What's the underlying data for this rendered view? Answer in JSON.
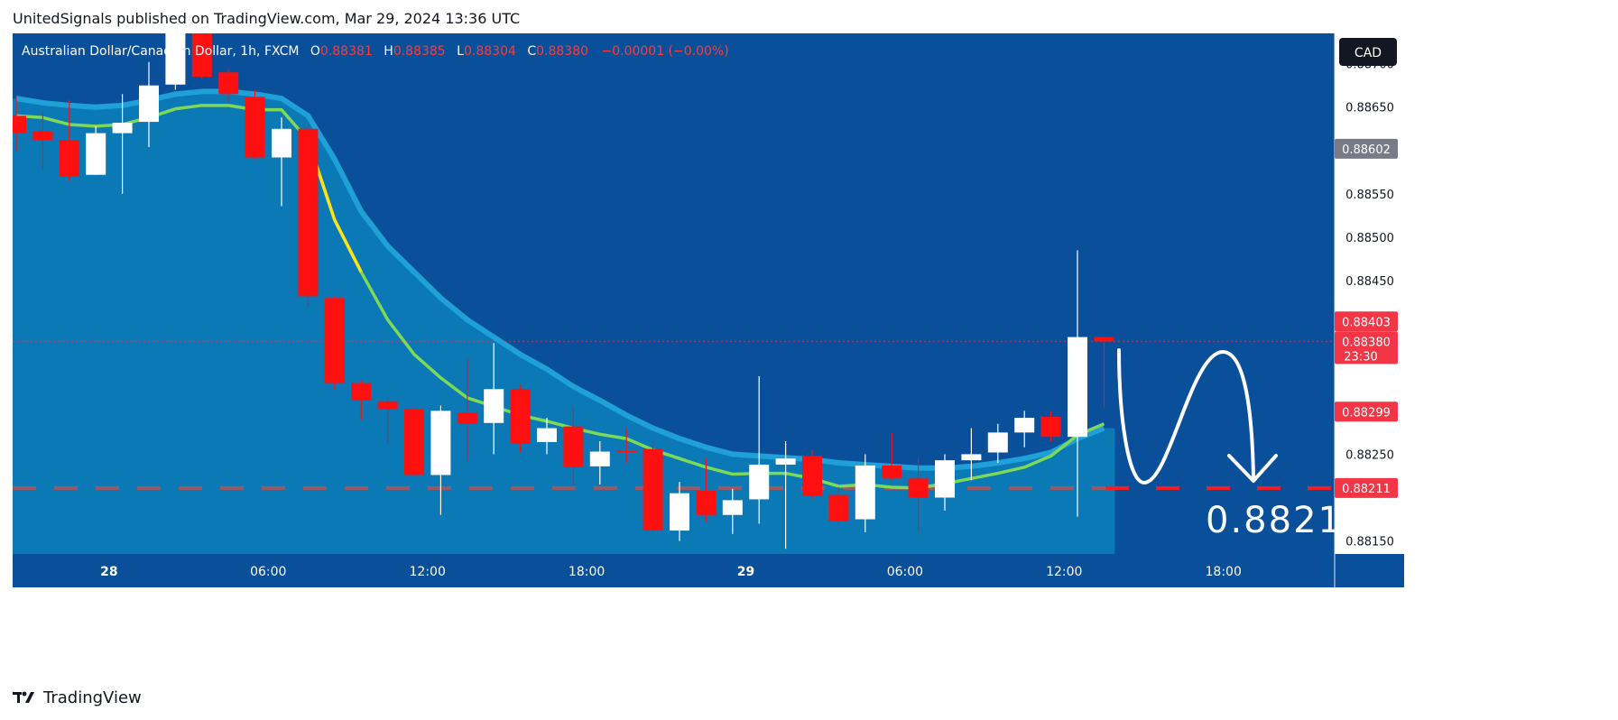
{
  "header": {
    "publisher": "UnitedSignals published on TradingView.com, Mar 29, 2024 13:36 UTC"
  },
  "legend": {
    "symbol": "Australian Dollar/Canadian Dollar, 1h, FXCM",
    "o_label": "O",
    "o_value": "0.88381",
    "h_label": "H",
    "h_value": "0.88385",
    "l_label": "L",
    "l_value": "0.88304",
    "c_label": "C",
    "c_value": "0.88380",
    "change": "−0.00001 (−0.00%)"
  },
  "currency_badge": "CAD",
  "footer": {
    "brand": "TradingView",
    "logo_icon": "tradingview-logo-icon"
  },
  "annotation": {
    "target_text": "0.8821",
    "arrow": "white-curved-arrow-down"
  },
  "colors": {
    "plot_bg": "#0a4f9a",
    "zone": "#0a7db8",
    "up": "#ffffff",
    "down": "#ff1010",
    "ema_fast": "#7ed957",
    "ema_slow": "#1fa0d8",
    "ema_yellow": "#ffe11a",
    "target_line": "#ff1a1a"
  },
  "chart_data": {
    "type": "candlestick",
    "y_range": [
      0.88135,
      0.88735
    ],
    "y_ticks": [
      "0.88700",
      "0.88650",
      "0.88550",
      "0.88500",
      "0.88450",
      "0.88250",
      "0.88150"
    ],
    "x_tick_labels": [
      "28",
      "06:00",
      "12:00",
      "18:00",
      "29",
      "06:00",
      "12:00",
      "18:00"
    ],
    "x_tick_positions": [
      3.5,
      9.5,
      15.5,
      21.5,
      27.5,
      33.5,
      39.5,
      45.5
    ],
    "candles": [
      {
        "o": 0.8864,
        "h": 0.88662,
        "l": 0.886,
        "c": 0.8862
      },
      {
        "o": 0.88622,
        "h": 0.88645,
        "l": 0.88578,
        "c": 0.88612
      },
      {
        "o": 0.88612,
        "h": 0.88658,
        "l": 0.88565,
        "c": 0.8857
      },
      {
        "o": 0.88572,
        "h": 0.88628,
        "l": 0.88572,
        "c": 0.8862
      },
      {
        "o": 0.8862,
        "h": 0.88665,
        "l": 0.8855,
        "c": 0.88632
      },
      {
        "o": 0.88633,
        "h": 0.88702,
        "l": 0.88604,
        "c": 0.88675
      },
      {
        "o": 0.88676,
        "h": 0.8876,
        "l": 0.8867,
        "c": 0.8875
      },
      {
        "o": 0.8875,
        "h": 0.8876,
        "l": 0.88683,
        "c": 0.88685
      },
      {
        "o": 0.8869,
        "h": 0.88695,
        "l": 0.88655,
        "c": 0.88665
      },
      {
        "o": 0.88662,
        "h": 0.8867,
        "l": 0.8859,
        "c": 0.88592
      },
      {
        "o": 0.88592,
        "h": 0.88638,
        "l": 0.88536,
        "c": 0.88625
      },
      {
        "o": 0.88625,
        "h": 0.8863,
        "l": 0.8842,
        "c": 0.88432
      },
      {
        "o": 0.8843,
        "h": 0.88432,
        "l": 0.88325,
        "c": 0.88332
      },
      {
        "o": 0.88332,
        "h": 0.88335,
        "l": 0.8829,
        "c": 0.88312
      },
      {
        "o": 0.88311,
        "h": 0.88315,
        "l": 0.88262,
        "c": 0.88302
      },
      {
        "o": 0.88302,
        "h": 0.88304,
        "l": 0.88225,
        "c": 0.88226
      },
      {
        "o": 0.88226,
        "h": 0.88306,
        "l": 0.8818,
        "c": 0.883
      },
      {
        "o": 0.88298,
        "h": 0.8836,
        "l": 0.88243,
        "c": 0.88285
      },
      {
        "o": 0.88286,
        "h": 0.88378,
        "l": 0.8825,
        "c": 0.88325
      },
      {
        "o": 0.88325,
        "h": 0.8833,
        "l": 0.88252,
        "c": 0.88262
      },
      {
        "o": 0.88264,
        "h": 0.88292,
        "l": 0.8825,
        "c": 0.8828
      },
      {
        "o": 0.88282,
        "h": 0.88305,
        "l": 0.88215,
        "c": 0.88235
      },
      {
        "o": 0.88236,
        "h": 0.88265,
        "l": 0.88215,
        "c": 0.88253
      },
      {
        "o": 0.88254,
        "h": 0.8828,
        "l": 0.8824,
        "c": 0.88253
      },
      {
        "o": 0.88256,
        "h": 0.88265,
        "l": 0.8816,
        "c": 0.88162
      },
      {
        "o": 0.88162,
        "h": 0.88218,
        "l": 0.8815,
        "c": 0.88205
      },
      {
        "o": 0.88208,
        "h": 0.88245,
        "l": 0.88172,
        "c": 0.8818
      },
      {
        "o": 0.8818,
        "h": 0.8821,
        "l": 0.88158,
        "c": 0.88197
      },
      {
        "o": 0.88198,
        "h": 0.8834,
        "l": 0.8817,
        "c": 0.88238
      },
      {
        "o": 0.88238,
        "h": 0.88265,
        "l": 0.88141,
        "c": 0.88245
      },
      {
        "o": 0.88248,
        "h": 0.88255,
        "l": 0.88198,
        "c": 0.88202
      },
      {
        "o": 0.88203,
        "h": 0.88212,
        "l": 0.8817,
        "c": 0.88173
      },
      {
        "o": 0.88175,
        "h": 0.8825,
        "l": 0.8816,
        "c": 0.88237
      },
      {
        "o": 0.88237,
        "h": 0.88275,
        "l": 0.8822,
        "c": 0.88222
      },
      {
        "o": 0.88222,
        "h": 0.88245,
        "l": 0.8816,
        "c": 0.882
      },
      {
        "o": 0.882,
        "h": 0.8825,
        "l": 0.88185,
        "c": 0.88243
      },
      {
        "o": 0.88243,
        "h": 0.8828,
        "l": 0.8822,
        "c": 0.8825
      },
      {
        "o": 0.88252,
        "h": 0.88285,
        "l": 0.8824,
        "c": 0.88275
      },
      {
        "o": 0.88275,
        "h": 0.883,
        "l": 0.88258,
        "c": 0.88292
      },
      {
        "o": 0.88293,
        "h": 0.883,
        "l": 0.88265,
        "c": 0.8827
      },
      {
        "o": 0.8827,
        "h": 0.88485,
        "l": 0.88178,
        "c": 0.88385
      },
      {
        "o": 0.88385,
        "h": 0.88385,
        "l": 0.88304,
        "c": 0.8838
      }
    ],
    "ema_fast": [
      0.8864,
      0.88638,
      0.8863,
      0.88628,
      0.8863,
      0.88638,
      0.88648,
      0.88652,
      0.88652,
      0.88647,
      0.88647,
      0.88612,
      0.8852,
      0.8846,
      0.88405,
      0.88365,
      0.88338,
      0.88315,
      0.88305,
      0.88295,
      0.88288,
      0.8828,
      0.88273,
      0.88268,
      0.88255,
      0.88245,
      0.88235,
      0.88227,
      0.88228,
      0.88228,
      0.88222,
      0.88213,
      0.88215,
      0.88212,
      0.88211,
      0.88216,
      0.88222,
      0.88228,
      0.88235,
      0.88248,
      0.88272,
      0.88285
    ],
    "ema_slow": [
      0.8866,
      0.88655,
      0.88652,
      0.8865,
      0.88652,
      0.88658,
      0.88665,
      0.88668,
      0.88668,
      0.88665,
      0.8866,
      0.8864,
      0.8859,
      0.8853,
      0.8849,
      0.8846,
      0.8843,
      0.88405,
      0.88385,
      0.88365,
      0.88348,
      0.88328,
      0.88312,
      0.88295,
      0.8828,
      0.88268,
      0.88258,
      0.8825,
      0.88248,
      0.88246,
      0.88244,
      0.8824,
      0.88238,
      0.88236,
      0.88234,
      0.88234,
      0.88236,
      0.8824,
      0.88245,
      0.88252,
      0.88268,
      0.8828
    ],
    "price_labels": [
      {
        "value": 0.88602,
        "text": "0.88602",
        "color": "#787b86"
      },
      {
        "value": 0.88403,
        "text": "0.88403",
        "color": "#f23645"
      },
      {
        "value": 0.8838,
        "text": "0.88380",
        "sub": "23:30",
        "color": "#f23645"
      },
      {
        "value": 0.88299,
        "text": "0.88299",
        "color": "#f23645"
      },
      {
        "value": 0.88211,
        "text": "0.88211",
        "color": "#f23645"
      }
    ],
    "current_price": 0.8838,
    "support_level": 0.88211
  }
}
